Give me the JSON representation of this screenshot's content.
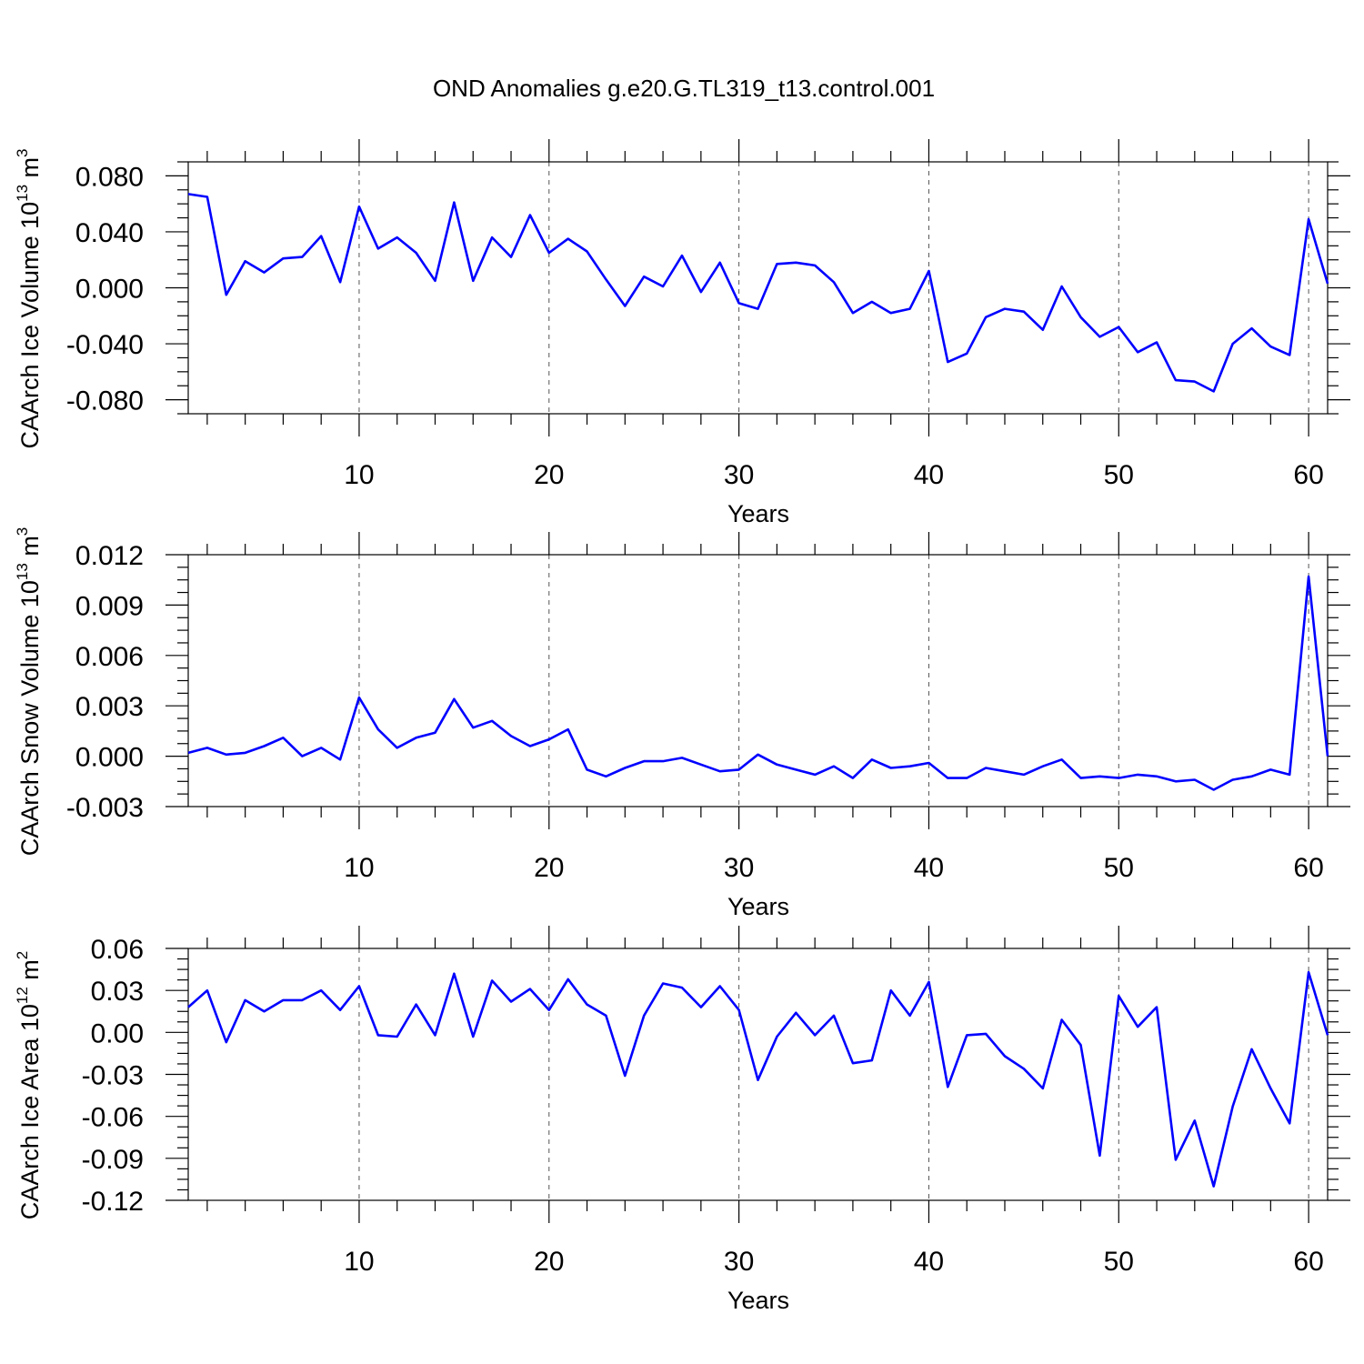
{
  "title": "OND Anomalies g.e20.G.TL319_t13.control.001",
  "line_color": "#0000ff",
  "chart_data": [
    {
      "type": "line",
      "ylabel_main": "CAArch Ice Volume 10",
      "ylabel_exp": "13",
      "ylabel_unit": " m",
      "ylabel_unit_exp": "3",
      "xlabel": "Years",
      "xlim": [
        1,
        61
      ],
      "ylim": [
        -0.09,
        0.09
      ],
      "x_ticks": [
        10,
        20,
        30,
        40,
        50,
        60
      ],
      "x_tick_labels": [
        "10",
        "20",
        "30",
        "40",
        "50",
        "60"
      ],
      "y_ticks": [
        0.08,
        0.04,
        0.0,
        -0.04,
        -0.08
      ],
      "y_tick_labels": [
        "0.080",
        "0.040",
        "0.000",
        "-0.040",
        "-0.080"
      ],
      "y_minor_step": 0.01,
      "grid": "dashed vertical at x ticks",
      "x": [
        1,
        2,
        3,
        4,
        5,
        6,
        7,
        8,
        9,
        10,
        11,
        12,
        13,
        14,
        15,
        16,
        17,
        18,
        19,
        20,
        21,
        22,
        23,
        24,
        25,
        26,
        27,
        28,
        29,
        30,
        31,
        32,
        33,
        34,
        35,
        36,
        37,
        38,
        39,
        40,
        41,
        42,
        43,
        44,
        45,
        46,
        47,
        48,
        49,
        50,
        51,
        52,
        53,
        54,
        55,
        56,
        57,
        58,
        59,
        60,
        61
      ],
      "values": [
        0.067,
        0.065,
        -0.005,
        0.019,
        0.011,
        0.021,
        0.022,
        0.037,
        0.004,
        0.058,
        0.028,
        0.036,
        0.025,
        0.005,
        0.061,
        0.005,
        0.036,
        0.022,
        0.052,
        0.025,
        0.035,
        0.026,
        0.006,
        -0.013,
        0.008,
        0.001,
        0.023,
        -0.003,
        0.018,
        -0.011,
        -0.015,
        0.017,
        0.018,
        0.016,
        0.004,
        -0.018,
        -0.01,
        -0.018,
        -0.015,
        0.012,
        -0.053,
        -0.047,
        -0.021,
        -0.015,
        -0.017,
        -0.03,
        0.001,
        -0.021,
        -0.035,
        -0.028,
        -0.046,
        -0.039,
        -0.066,
        -0.067,
        -0.074,
        -0.04,
        -0.029,
        -0.042,
        -0.048,
        0.049,
        0.003
      ]
    },
    {
      "type": "line",
      "ylabel_main": "CAArch Snow Volume 10",
      "ylabel_exp": "13",
      "ylabel_unit": " m",
      "ylabel_unit_exp": "3",
      "xlabel": "Years",
      "xlim": [
        1,
        61
      ],
      "ylim": [
        -0.003,
        0.012
      ],
      "x_ticks": [
        10,
        20,
        30,
        40,
        50,
        60
      ],
      "x_tick_labels": [
        "10",
        "20",
        "30",
        "40",
        "50",
        "60"
      ],
      "y_ticks": [
        0.012,
        0.009,
        0.006,
        0.003,
        0.0,
        -0.003
      ],
      "y_tick_labels": [
        "0.012",
        "0.009",
        "0.006",
        "0.003",
        "0.000",
        "-0.003"
      ],
      "y_minor_step": 0.00075,
      "grid": "dashed vertical at x ticks",
      "x": [
        1,
        2,
        3,
        4,
        5,
        6,
        7,
        8,
        9,
        10,
        11,
        12,
        13,
        14,
        15,
        16,
        17,
        18,
        19,
        20,
        21,
        22,
        23,
        24,
        25,
        26,
        27,
        28,
        29,
        30,
        31,
        32,
        33,
        34,
        35,
        36,
        37,
        38,
        39,
        40,
        41,
        42,
        43,
        44,
        45,
        46,
        47,
        48,
        49,
        50,
        51,
        52,
        53,
        54,
        55,
        56,
        57,
        58,
        59,
        60,
        61
      ],
      "values": [
        0.0002,
        0.0005,
        0.0001,
        0.0002,
        0.0006,
        0.0011,
        0.0,
        0.0005,
        -0.0002,
        0.0035,
        0.0016,
        0.0005,
        0.0011,
        0.0014,
        0.0034,
        0.0017,
        0.0021,
        0.0012,
        0.0006,
        0.001,
        0.0016,
        -0.0008,
        -0.0012,
        -0.0007,
        -0.0003,
        -0.0003,
        -0.0001,
        -0.0005,
        -0.0009,
        -0.0008,
        0.0001,
        -0.0005,
        -0.0008,
        -0.0011,
        -0.0006,
        -0.0013,
        -0.0002,
        -0.0007,
        -0.0006,
        -0.0004,
        -0.0013,
        -0.0013,
        -0.0007,
        -0.0009,
        -0.0011,
        -0.0006,
        -0.0002,
        -0.0013,
        -0.0012,
        -0.0013,
        -0.0011,
        -0.0012,
        -0.0015,
        -0.0014,
        -0.002,
        -0.0014,
        -0.0012,
        -0.0008,
        -0.0011,
        0.0107,
        0.0
      ]
    },
    {
      "type": "line",
      "ylabel_main": "CAArch Ice Area 10",
      "ylabel_exp": "12",
      "ylabel_unit": " m",
      "ylabel_unit_exp": "2",
      "xlabel": "Years",
      "xlim": [
        1,
        61
      ],
      "ylim": [
        -0.12,
        0.06
      ],
      "x_ticks": [
        10,
        20,
        30,
        40,
        50,
        60
      ],
      "x_tick_labels": [
        "10",
        "20",
        "30",
        "40",
        "50",
        "60"
      ],
      "y_ticks": [
        0.06,
        0.03,
        0.0,
        -0.03,
        -0.06,
        -0.09,
        -0.12
      ],
      "y_tick_labels": [
        "0.06",
        "0.03",
        "0.00",
        "-0.03",
        "-0.06",
        "-0.09",
        "-0.12"
      ],
      "y_minor_step": 0.0075,
      "grid": "dashed vertical at x ticks",
      "x": [
        1,
        2,
        3,
        4,
        5,
        6,
        7,
        8,
        9,
        10,
        11,
        12,
        13,
        14,
        15,
        16,
        17,
        18,
        19,
        20,
        21,
        22,
        23,
        24,
        25,
        26,
        27,
        28,
        29,
        30,
        31,
        32,
        33,
        34,
        35,
        36,
        37,
        38,
        39,
        40,
        41,
        42,
        43,
        44,
        45,
        46,
        47,
        48,
        49,
        50,
        51,
        52,
        53,
        54,
        55,
        56,
        57,
        58,
        59,
        60,
        61
      ],
      "values": [
        0.018,
        0.03,
        -0.007,
        0.023,
        0.015,
        0.023,
        0.023,
        0.03,
        0.016,
        0.033,
        -0.002,
        -0.003,
        0.02,
        -0.002,
        0.042,
        -0.003,
        0.037,
        0.022,
        0.031,
        0.016,
        0.038,
        0.02,
        0.012,
        -0.031,
        0.012,
        0.035,
        0.032,
        0.018,
        0.033,
        0.016,
        -0.034,
        -0.003,
        0.014,
        -0.002,
        0.012,
        -0.022,
        -0.02,
        0.03,
        0.012,
        0.036,
        -0.039,
        -0.002,
        -0.001,
        -0.017,
        -0.026,
        -0.04,
        0.009,
        -0.009,
        -0.088,
        0.026,
        0.004,
        0.018,
        -0.091,
        -0.063,
        -0.11,
        -0.053,
        -0.012,
        -0.04,
        -0.065,
        0.043,
        -0.002
      ]
    }
  ]
}
